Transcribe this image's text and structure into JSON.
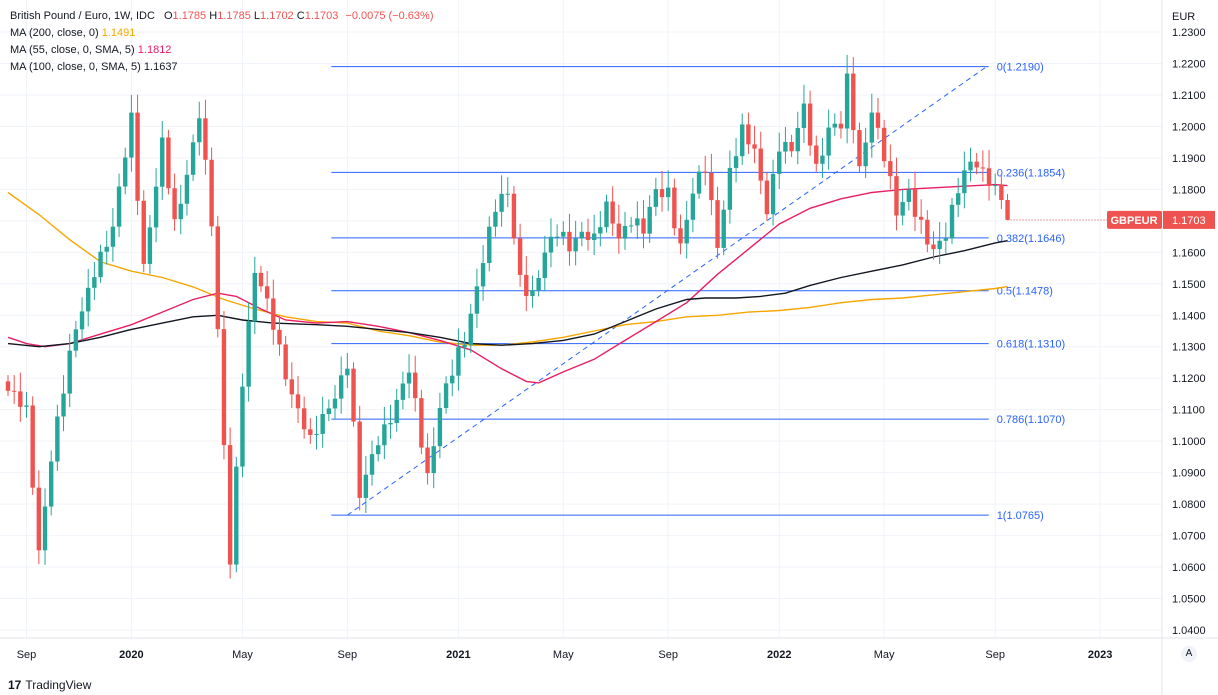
{
  "legend": {
    "main": {
      "title": "British Pound / Euro, 1W, IDC",
      "o_label": "O",
      "o_value": "1.1785",
      "h_label": "H",
      "h_value": "1.1785",
      "l_label": "L",
      "l_value": "1.1702",
      "c_label": "C",
      "c_value": "1.1703",
      "change": "−0.0075 (−0.63%)"
    },
    "ma200": {
      "label": "MA (200, close, 0)",
      "value": "1.1491"
    },
    "ma55": {
      "label": "MA (55, close, 0, SMA, 5)",
      "value": "1.1812"
    },
    "ma100": {
      "label": "MA (100, close, 0, SMA, 5)",
      "value": "1.1637"
    }
  },
  "branding": {
    "logo": "17",
    "name": "TradingView"
  },
  "axis_auto_label": "A",
  "colors": {
    "up": "#26a69a",
    "down": "#ef5350",
    "fib": "#2962ff",
    "ma200": "#f7a600",
    "ma55": "#e91e63",
    "ma100": "#131722",
    "grid": "#f0f3fa"
  },
  "chart_data": {
    "type": "candlestick",
    "symbol": "GBPEUR",
    "currency": "EUR",
    "last_price": "1.1703",
    "y_range": [
      1.036,
      1.233
    ],
    "y_ticks": [
      "1.2300",
      "1.2200",
      "1.2100",
      "1.2000",
      "1.1900",
      "1.1800",
      "1.1700",
      "1.1600",
      "1.1500",
      "1.1400",
      "1.1300",
      "1.1200",
      "1.1100",
      "1.1000",
      "1.0900",
      "1.0800",
      "1.0700",
      "1.0600",
      "1.0500",
      "1.0400"
    ],
    "x_ticks": [
      {
        "label": "Sep",
        "bar": 3
      },
      {
        "label": "2020",
        "bar": 20
      },
      {
        "label": "May",
        "bar": 38
      },
      {
        "label": "Sep",
        "bar": 55
      },
      {
        "label": "2021",
        "bar": 73
      },
      {
        "label": "May",
        "bar": 90
      },
      {
        "label": "Sep",
        "bar": 107
      },
      {
        "label": "2022",
        "bar": 125
      },
      {
        "label": "May",
        "bar": 142
      },
      {
        "label": "Sep",
        "bar": 160
      },
      {
        "label": "2023",
        "bar": 177
      }
    ],
    "fib_levels": [
      {
        "ratio": "0",
        "value": 1.219,
        "label": "0(1.2190)"
      },
      {
        "ratio": "0.236",
        "value": 1.1854,
        "label": "0.236(1.1854)"
      },
      {
        "ratio": "0.382",
        "value": 1.1646,
        "label": "0.382(1.1646)"
      },
      {
        "ratio": "0.5",
        "value": 1.1478,
        "label": "0.5(1.1478)"
      },
      {
        "ratio": "0.618",
        "value": 1.131,
        "label": "0.618(1.1310)"
      },
      {
        "ratio": "0.786",
        "value": 1.107,
        "label": "0.786(1.1070)"
      },
      {
        "ratio": "1",
        "value": 1.0765,
        "label": "1(1.0765)"
      }
    ],
    "fib_trend": {
      "start_bar": 55,
      "start_value": 1.0765,
      "end_bar": 157,
      "end_value": 1.219,
      "levels_start_bar": 55
    },
    "candle_keypoints": [
      [
        0,
        1.116
      ],
      [
        3,
        1.108
      ],
      [
        5,
        1.066
      ],
      [
        7,
        1.096
      ],
      [
        11,
        1.135
      ],
      [
        14,
        1.156
      ],
      [
        17,
        1.166
      ],
      [
        20,
        1.203
      ],
      [
        22,
        1.157
      ],
      [
        25,
        1.193
      ],
      [
        27,
        1.168
      ],
      [
        31,
        1.205
      ],
      [
        33,
        1.168
      ],
      [
        36,
        1.063
      ],
      [
        38,
        1.121
      ],
      [
        40,
        1.153
      ],
      [
        43,
        1.137
      ],
      [
        46,
        1.116
      ],
      [
        49,
        1.098
      ],
      [
        52,
        1.112
      ],
      [
        55,
        1.125
      ],
      [
        57,
        1.081
      ],
      [
        60,
        1.102
      ],
      [
        63,
        1.112
      ],
      [
        65,
        1.121
      ],
      [
        68,
        1.09
      ],
      [
        70,
        1.112
      ],
      [
        72,
        1.121
      ],
      [
        74,
        1.131
      ],
      [
        77,
        1.16
      ],
      [
        79,
        1.174
      ],
      [
        81,
        1.177
      ],
      [
        83,
        1.152
      ],
      [
        85,
        1.148
      ],
      [
        87,
        1.159
      ],
      [
        89,
        1.165
      ],
      [
        91,
        1.163
      ],
      [
        93,
        1.168
      ],
      [
        95,
        1.163
      ],
      [
        97,
        1.173
      ],
      [
        99,
        1.166
      ],
      [
        101,
        1.172
      ],
      [
        103,
        1.166
      ],
      [
        105,
        1.178
      ],
      [
        107,
        1.18
      ],
      [
        109,
        1.163
      ],
      [
        111,
        1.178
      ],
      [
        113,
        1.186
      ],
      [
        115,
        1.164
      ],
      [
        117,
        1.187
      ],
      [
        119,
        1.197
      ],
      [
        121,
        1.191
      ],
      [
        123,
        1.175
      ],
      [
        125,
        1.195
      ],
      [
        127,
        1.191
      ],
      [
        129,
        1.205
      ],
      [
        131,
        1.188
      ],
      [
        133,
        1.2
      ],
      [
        135,
        1.199
      ],
      [
        136,
        1.213
      ],
      [
        138,
        1.187
      ],
      [
        140,
        1.207
      ],
      [
        142,
        1.19
      ],
      [
        144,
        1.171
      ],
      [
        146,
        1.18
      ],
      [
        148,
        1.17
      ],
      [
        150,
        1.159
      ],
      [
        152,
        1.164
      ],
      [
        154,
        1.182
      ],
      [
        156,
        1.191
      ],
      [
        158,
        1.184
      ],
      [
        160,
        1.178
      ],
      [
        161,
        1.178
      ],
      [
        162,
        1.1703
      ]
    ],
    "series": [
      {
        "name": "MA (200, close, 0)",
        "color": "#f7a600",
        "start_bar": 0,
        "points": [
          [
            0,
            1.179
          ],
          [
            5,
            1.172
          ],
          [
            10,
            1.164
          ],
          [
            15,
            1.157
          ],
          [
            20,
            1.154
          ],
          [
            25,
            1.152
          ],
          [
            30,
            1.149
          ],
          [
            35,
            1.145
          ],
          [
            40,
            1.142
          ],
          [
            45,
            1.1395
          ],
          [
            50,
            1.138
          ],
          [
            55,
            1.1375
          ],
          [
            60,
            1.135
          ],
          [
            65,
            1.1335
          ],
          [
            70,
            1.1315
          ],
          [
            75,
            1.1305
          ],
          [
            80,
            1.1305
          ],
          [
            85,
            1.1315
          ],
          [
            90,
            1.133
          ],
          [
            95,
            1.135
          ],
          [
            100,
            1.137
          ],
          [
            105,
            1.138
          ],
          [
            110,
            1.1395
          ],
          [
            115,
            1.14
          ],
          [
            120,
            1.141
          ],
          [
            125,
            1.1415
          ],
          [
            130,
            1.1425
          ],
          [
            135,
            1.144
          ],
          [
            140,
            1.145
          ],
          [
            145,
            1.1455
          ],
          [
            150,
            1.1465
          ],
          [
            155,
            1.1475
          ],
          [
            160,
            1.1485
          ],
          [
            162,
            1.1491
          ]
        ]
      },
      {
        "name": "MA (55, close, 0, SMA, 5)",
        "color": "#e91e63",
        "start_bar": 0,
        "points": [
          [
            0,
            1.133
          ],
          [
            3,
            1.131
          ],
          [
            6,
            1.13
          ],
          [
            10,
            1.131
          ],
          [
            15,
            1.134
          ],
          [
            20,
            1.137
          ],
          [
            25,
            1.141
          ],
          [
            30,
            1.145
          ],
          [
            34,
            1.147
          ],
          [
            37,
            1.146
          ],
          [
            41,
            1.142
          ],
          [
            45,
            1.1385
          ],
          [
            50,
            1.1375
          ],
          [
            55,
            1.138
          ],
          [
            60,
            1.1365
          ],
          [
            65,
            1.1345
          ],
          [
            70,
            1.132
          ],
          [
            75,
            1.129
          ],
          [
            80,
            1.123
          ],
          [
            84,
            1.119
          ],
          [
            86,
            1.1185
          ],
          [
            90,
            1.122
          ],
          [
            95,
            1.126
          ],
          [
            100,
            1.132
          ],
          [
            105,
            1.138
          ],
          [
            110,
            1.144
          ],
          [
            115,
            1.153
          ],
          [
            120,
            1.161
          ],
          [
            125,
            1.169
          ],
          [
            130,
            1.174
          ],
          [
            135,
            1.177
          ],
          [
            140,
            1.179
          ],
          [
            145,
            1.18
          ],
          [
            150,
            1.1805
          ],
          [
            155,
            1.181
          ],
          [
            160,
            1.1815
          ],
          [
            162,
            1.1812
          ]
        ]
      },
      {
        "name": "MA (100, close, 0, SMA, 5)",
        "color": "#131722",
        "start_bar": 0,
        "points": [
          [
            0,
            1.131
          ],
          [
            5,
            1.13
          ],
          [
            10,
            1.131
          ],
          [
            15,
            1.133
          ],
          [
            20,
            1.1355
          ],
          [
            25,
            1.1375
          ],
          [
            30,
            1.1395
          ],
          [
            34,
            1.14
          ],
          [
            38,
            1.1385
          ],
          [
            43,
            1.1375
          ],
          [
            50,
            1.137
          ],
          [
            55,
            1.1365
          ],
          [
            60,
            1.1355
          ],
          [
            65,
            1.1345
          ],
          [
            70,
            1.133
          ],
          [
            75,
            1.131
          ],
          [
            80,
            1.1305
          ],
          [
            85,
            1.131
          ],
          [
            90,
            1.132
          ],
          [
            95,
            1.134
          ],
          [
            100,
            1.138
          ],
          [
            105,
            1.142
          ],
          [
            110,
            1.145
          ],
          [
            113,
            1.1455
          ],
          [
            118,
            1.1455
          ],
          [
            122,
            1.146
          ],
          [
            126,
            1.147
          ],
          [
            130,
            1.1495
          ],
          [
            135,
            1.152
          ],
          [
            140,
            1.154
          ],
          [
            145,
            1.156
          ],
          [
            150,
            1.1585
          ],
          [
            155,
            1.1605
          ],
          [
            160,
            1.163
          ],
          [
            162,
            1.1637
          ]
        ]
      }
    ]
  }
}
